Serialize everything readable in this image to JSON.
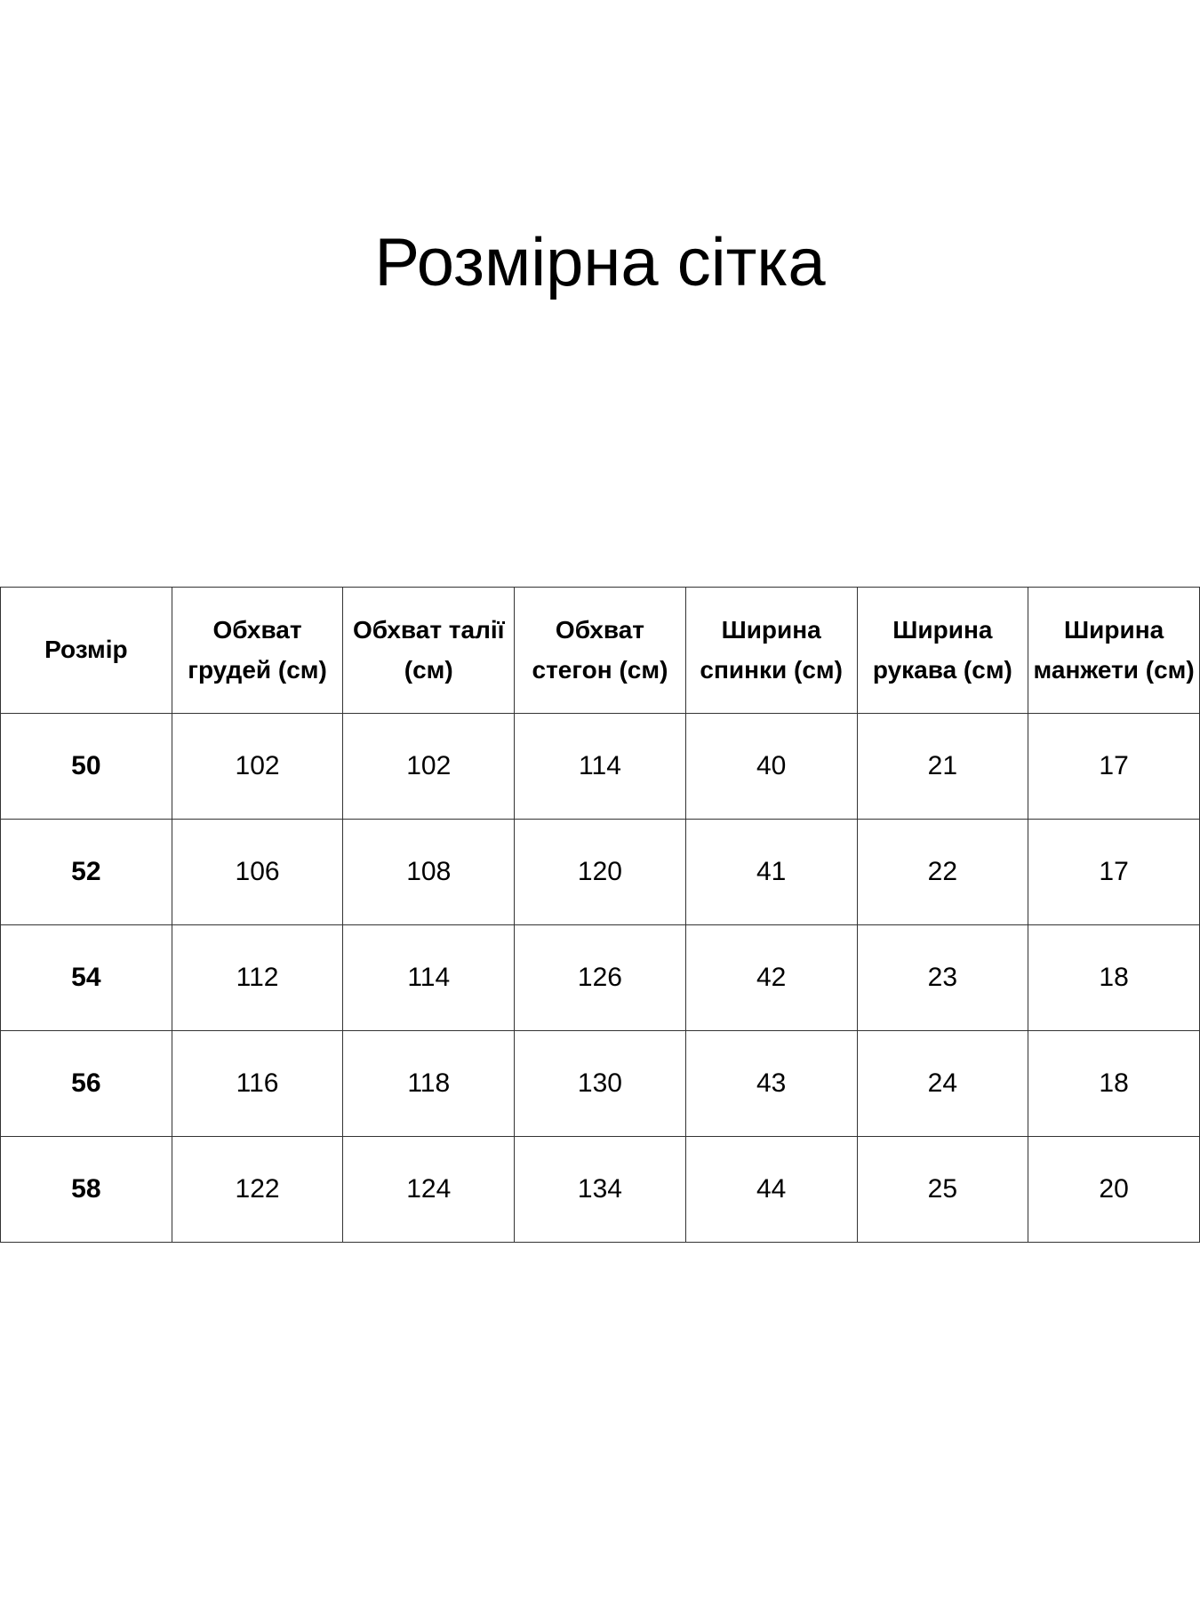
{
  "title": "Розмірна сітка",
  "table": {
    "headers": [
      "Розмір",
      "Обхват грудей (см)",
      "Обхват талії (см)",
      "Обхват стегон (см)",
      "Ширина спинки (см)",
      "Ширина рукава (см)",
      "Ширина манжети (см)"
    ],
    "rows": [
      [
        "50",
        "102",
        "102",
        "114",
        "40",
        "21",
        "17"
      ],
      [
        "52",
        "106",
        "108",
        "120",
        "41",
        "22",
        "17"
      ],
      [
        "54",
        "112",
        "114",
        "126",
        "42",
        "23",
        "18"
      ],
      [
        "56",
        "116",
        "118",
        "130",
        "43",
        "24",
        "18"
      ],
      [
        "58",
        "122",
        "124",
        "134",
        "44",
        "25",
        "20"
      ]
    ]
  }
}
